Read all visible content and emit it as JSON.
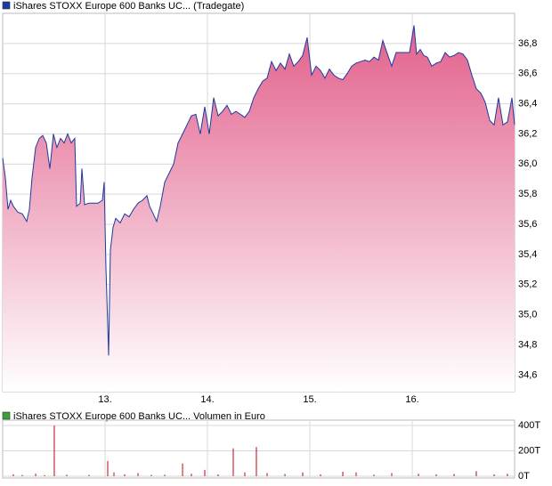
{
  "chart_data": [
    {
      "type": "area",
      "title": "iShares STOXX Europe 600 Banks UC... (Tradegate)",
      "color": "#1c3aa0",
      "fill_color": "#e2608c",
      "grid": true,
      "xlim": [
        12,
        17
      ],
      "xticks": [
        {
          "value": 13,
          "label": "13."
        },
        {
          "value": 14,
          "label": "14."
        },
        {
          "value": 15,
          "label": "15."
        },
        {
          "value": 16,
          "label": "16."
        }
      ],
      "ylim": [
        34.49,
        37.0
      ],
      "yticks": [
        {
          "value": 34.6,
          "label": "34,6"
        },
        {
          "value": 34.8,
          "label": "34,8"
        },
        {
          "value": 35.0,
          "label": "35,0"
        },
        {
          "value": 35.2,
          "label": "35,2"
        },
        {
          "value": 35.4,
          "label": "35,4"
        },
        {
          "value": 35.6,
          "label": "35,6"
        },
        {
          "value": 35.8,
          "label": "35,8"
        },
        {
          "value": 36.0,
          "label": "36,0"
        },
        {
          "value": 36.2,
          "label": "36,2"
        },
        {
          "value": 36.4,
          "label": "36,4"
        },
        {
          "value": 36.6,
          "label": "36,6"
        },
        {
          "value": 36.8,
          "label": "36,8"
        }
      ],
      "x": [
        12.0,
        12.026,
        12.052,
        12.078,
        12.104,
        12.148,
        12.191,
        12.235,
        12.261,
        12.287,
        12.322,
        12.357,
        12.391,
        12.426,
        12.461,
        12.496,
        12.53,
        12.565,
        12.6,
        12.635,
        12.67,
        12.704,
        12.722,
        12.757,
        12.774,
        12.8,
        12.843,
        12.887,
        12.93,
        12.974,
        12.991,
        13.009,
        13.026,
        13.035,
        13.052,
        13.078,
        13.104,
        13.148,
        13.191,
        13.235,
        13.278,
        13.322,
        13.365,
        13.409,
        13.435,
        13.47,
        13.504,
        13.539,
        13.583,
        13.626,
        13.67,
        13.713,
        13.757,
        13.8,
        13.843,
        13.887,
        13.93,
        13.974,
        14.017,
        14.061,
        14.104,
        14.148,
        14.191,
        14.235,
        14.278,
        14.322,
        14.365,
        14.409,
        14.452,
        14.496,
        14.539,
        14.583,
        14.626,
        14.67,
        14.713,
        14.757,
        14.8,
        14.843,
        14.887,
        14.93,
        14.974,
        15.017,
        15.061,
        15.104,
        15.148,
        15.191,
        15.235,
        15.278,
        15.322,
        15.365,
        15.409,
        15.452,
        15.496,
        15.539,
        15.583,
        15.626,
        15.67,
        15.713,
        15.757,
        15.8,
        15.843,
        15.887,
        15.93,
        15.974,
        16.017,
        16.043,
        16.078,
        16.113,
        16.148,
        16.191,
        16.235,
        16.278,
        16.322,
        16.365,
        16.409,
        16.452,
        16.496,
        16.539,
        16.583,
        16.626,
        16.67,
        16.713,
        16.757,
        16.8,
        16.843,
        16.887,
        16.93,
        16.974,
        17.0
      ],
      "values": [
        36.04,
        35.91,
        35.7,
        35.76,
        35.72,
        35.68,
        35.67,
        35.62,
        35.7,
        35.91,
        36.11,
        36.17,
        36.19,
        36.14,
        35.97,
        36.2,
        36.11,
        36.17,
        36.14,
        36.2,
        36.14,
        36.17,
        35.72,
        35.74,
        35.97,
        35.73,
        35.74,
        35.74,
        35.74,
        35.76,
        35.88,
        35.31,
        34.93,
        34.73,
        35.43,
        35.58,
        35.64,
        35.61,
        35.67,
        35.65,
        35.7,
        35.74,
        35.76,
        35.79,
        35.72,
        35.67,
        35.62,
        35.72,
        35.88,
        35.94,
        36.0,
        36.14,
        36.2,
        36.26,
        36.32,
        36.33,
        36.2,
        36.38,
        36.2,
        36.44,
        36.32,
        36.35,
        36.39,
        36.33,
        36.35,
        36.33,
        36.31,
        36.35,
        36.44,
        36.5,
        36.55,
        36.57,
        36.68,
        36.62,
        36.67,
        36.63,
        36.73,
        36.65,
        36.68,
        36.72,
        36.84,
        36.59,
        36.65,
        36.62,
        36.57,
        36.63,
        36.59,
        36.57,
        36.56,
        36.6,
        36.65,
        36.67,
        36.68,
        36.69,
        36.68,
        36.71,
        36.69,
        36.82,
        36.73,
        36.65,
        36.74,
        36.74,
        36.74,
        36.74,
        36.92,
        36.73,
        36.76,
        36.72,
        36.71,
        36.65,
        36.67,
        36.68,
        36.74,
        36.71,
        36.72,
        36.74,
        36.73,
        36.69,
        36.59,
        36.5,
        36.47,
        36.41,
        36.29,
        36.26,
        36.44,
        36.26,
        36.28,
        36.44,
        36.26
      ]
    },
    {
      "type": "bar",
      "title": "iShares STOXX Europe 600 Banks UC... Volumen in Euro",
      "color": "#3aa03a",
      "bar_color": "#c8303a",
      "grid": true,
      "xlim": [
        12,
        17
      ],
      "xticks": [
        13,
        14,
        15,
        16
      ],
      "ylim": [
        0,
        400
      ],
      "yticks": [
        {
          "value": 0,
          "label": "0T"
        },
        {
          "value": 200,
          "label": "200T"
        },
        {
          "value": 400,
          "label": "400T"
        }
      ],
      "x": [
        12.104,
        12.191,
        12.322,
        12.409,
        12.504,
        12.626,
        12.843,
        13.026,
        13.087,
        13.191,
        13.322,
        13.452,
        13.583,
        13.757,
        13.843,
        13.974,
        14.104,
        14.252,
        14.365,
        14.478,
        14.583,
        14.757,
        14.93,
        15.104,
        15.322,
        15.452,
        15.626,
        15.8,
        16.061,
        16.235,
        16.409,
        16.626,
        16.8,
        16.93
      ],
      "values": [
        15,
        10,
        20,
        8,
        400,
        12,
        10,
        120,
        30,
        15,
        25,
        10,
        12,
        100,
        20,
        50,
        15,
        220,
        30,
        230,
        25,
        18,
        30,
        15,
        35,
        30,
        12,
        25,
        20,
        15,
        18,
        40,
        15,
        20
      ]
    }
  ]
}
